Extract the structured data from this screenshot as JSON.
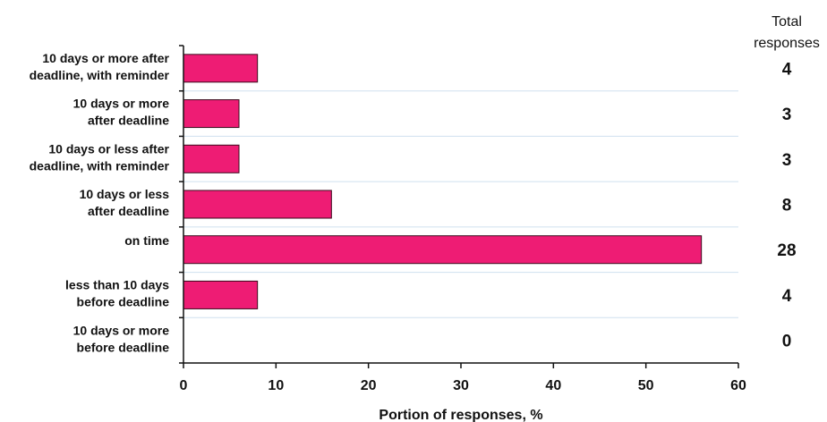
{
  "chart_data": {
    "type": "bar",
    "orientation": "horizontal",
    "categories": [
      [
        "10 days or more after",
        "deadline, with reminder"
      ],
      [
        "10 days or more",
        "after deadline"
      ],
      [
        "10 days or less after",
        "deadline, with reminder"
      ],
      [
        "10 days or less",
        "after deadline"
      ],
      [
        "on time"
      ],
      [
        "less than 10 days",
        "before deadline"
      ],
      [
        "10 days or more",
        "before deadline"
      ]
    ],
    "values": [
      8,
      6,
      6,
      16,
      56,
      8,
      0
    ],
    "totals": [
      "4",
      "3",
      "3",
      "8",
      "28",
      "4",
      "0"
    ],
    "totals_header": [
      "Total",
      "responses"
    ],
    "xlabel": "Portion of responses, %",
    "ylabel": "",
    "xlim": [
      0,
      60
    ],
    "xticks": [
      0,
      10,
      20,
      30,
      40,
      50,
      60
    ],
    "grid": "horizontal",
    "colors": {
      "bar_fill": "#ee1c74",
      "bar_stroke": "#3a0a1c",
      "grid": "#cfe0ef",
      "axis": "#111111"
    }
  }
}
